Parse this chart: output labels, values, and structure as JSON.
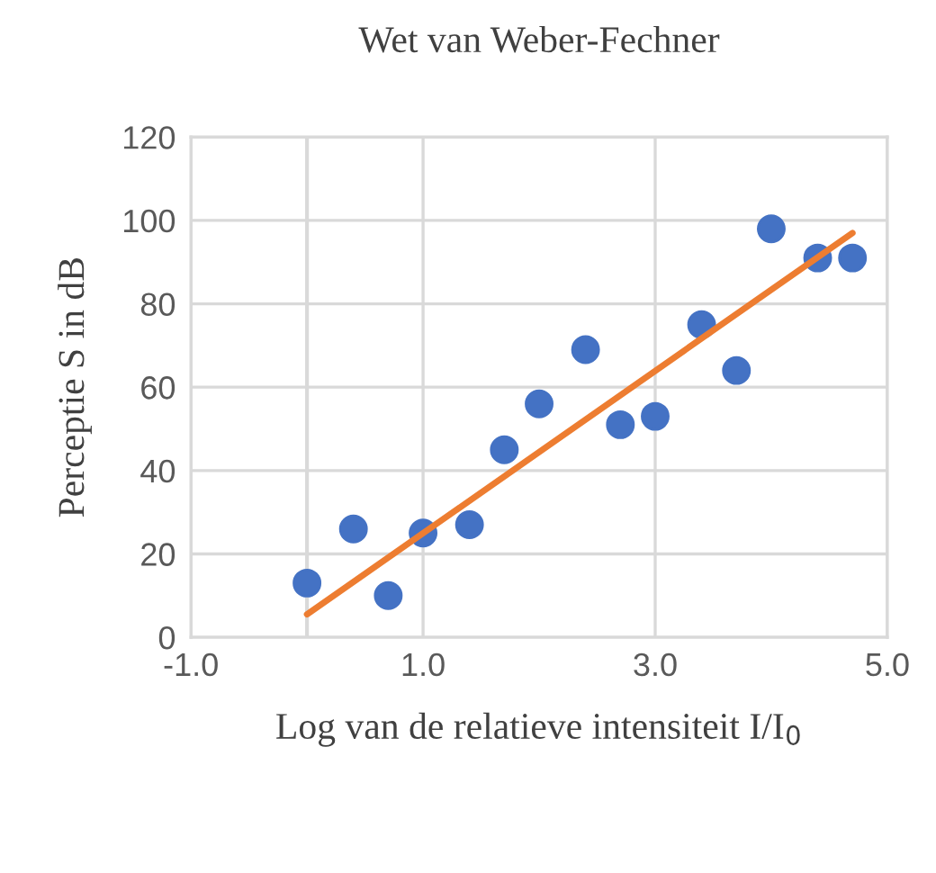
{
  "chart_data": {
    "type": "scatter",
    "title": "Wet van Weber-Fechner",
    "xlabel": "Log van de relatieve intensiteit I/I$_{0}$",
    "ylabel": "Perceptie S in dB",
    "xlim": [
      -1,
      5
    ],
    "xticks": [
      {
        "value": -1,
        "label": "-1.0"
      },
      {
        "value": 1,
        "label": "1.0"
      },
      {
        "value": 3,
        "label": "3.0"
      },
      {
        "value": 5,
        "label": "5.0"
      }
    ],
    "ylim": [
      0,
      120
    ],
    "yticks": [
      0,
      20,
      40,
      60,
      80,
      100,
      120
    ],
    "grid": true,
    "ref_lines": [
      {
        "axis": "x",
        "value": 0,
        "color": "#d9d9d9"
      }
    ],
    "series": [
      {
        "marker": "circle",
        "color": "#4472c4",
        "x": [
          0.0,
          0.4,
          0.7,
          1.0,
          1.4,
          1.7,
          2.0,
          2.4,
          2.7,
          3.0,
          3.4,
          3.7,
          4.0,
          4.4,
          4.7
        ],
        "values": [
          13,
          26,
          10,
          25,
          27,
          45,
          56,
          69,
          51,
          53,
          75,
          64,
          98,
          91,
          91
        ]
      },
      {
        "type": "line",
        "marker": "none",
        "color": "#ed7d31",
        "x": [
          0.0,
          4.7
        ],
        "values": [
          5.5,
          97
        ]
      }
    ]
  }
}
